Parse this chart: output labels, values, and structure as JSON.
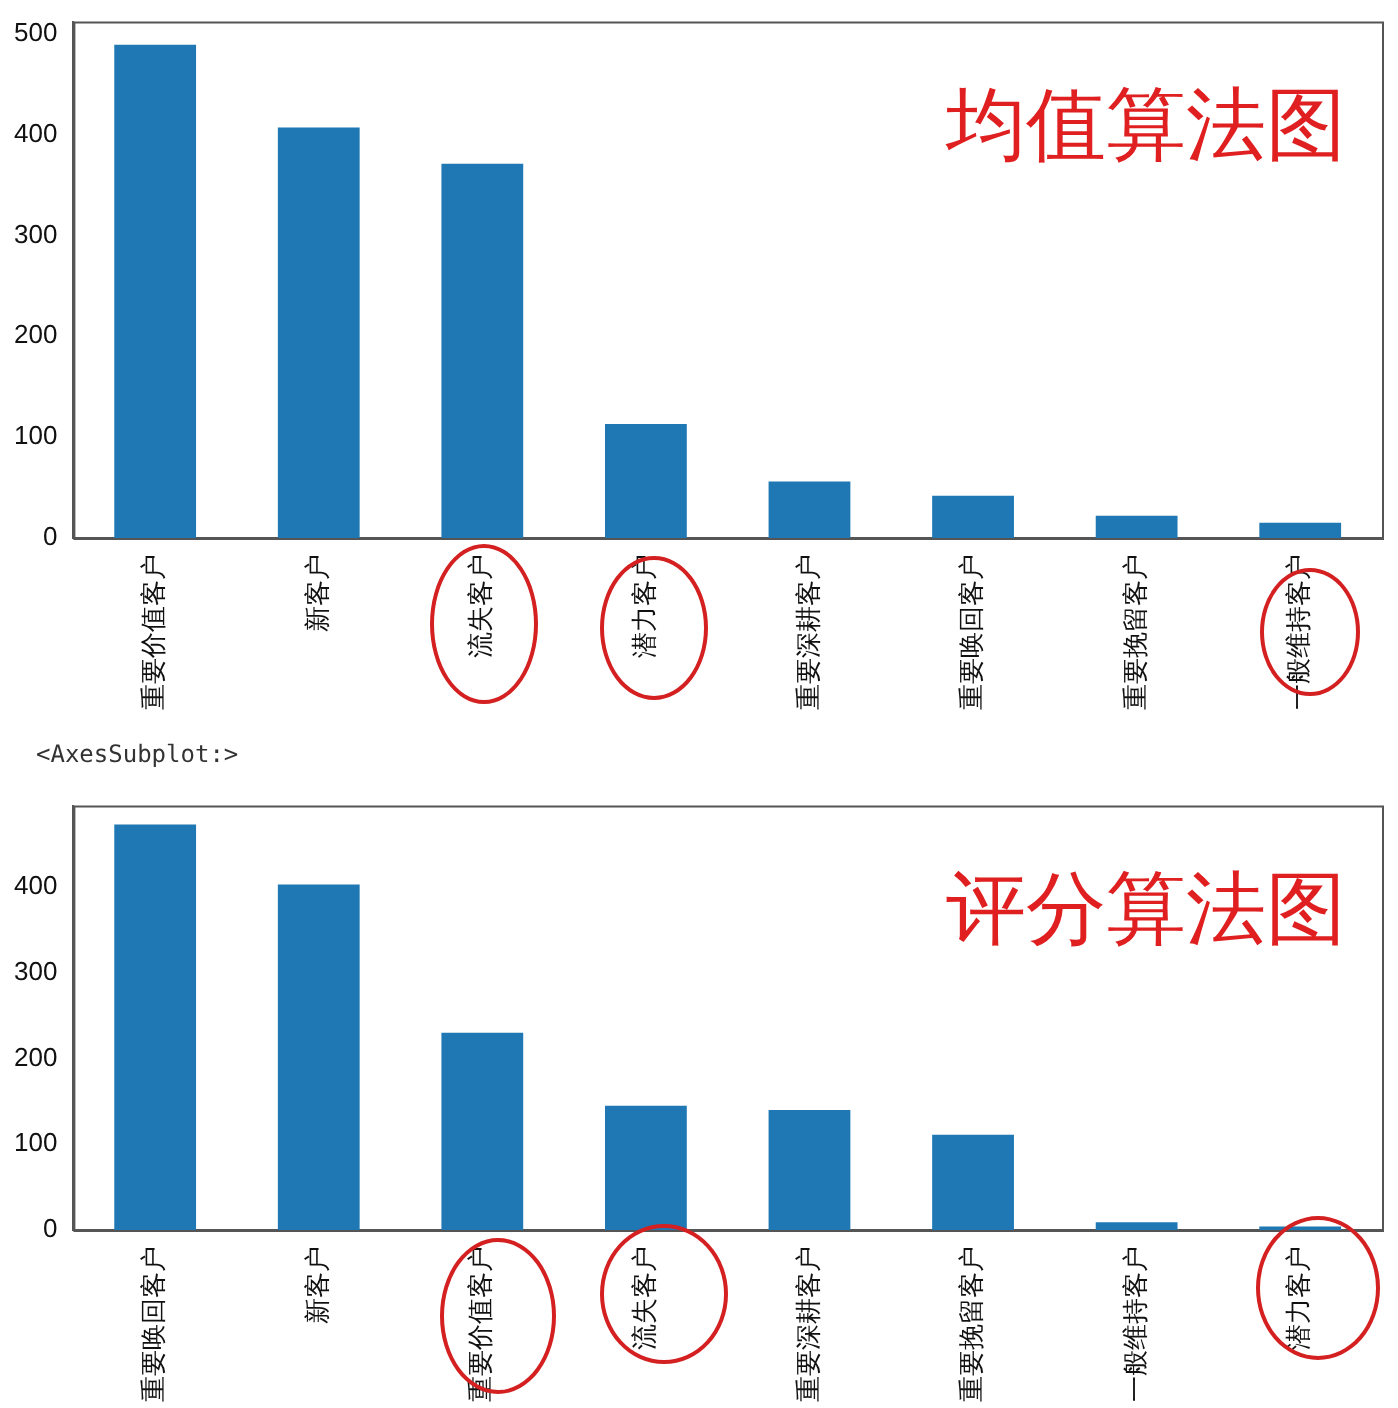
{
  "chart_data": [
    {
      "type": "bar",
      "title": "均值算法图",
      "categories": [
        "重要价值客户",
        "新客户",
        "流失客户",
        "潜力客户",
        "重要深耕客户",
        "重要唤回客户",
        "重要挽留客户",
        "一般维持客户"
      ],
      "values": [
        489,
        407,
        371,
        113,
        56,
        42,
        22,
        15
      ],
      "color": "#1f77b4",
      "ylim": [
        0,
        512
      ],
      "yticks": [
        0,
        100,
        200,
        300,
        400,
        500
      ],
      "grid": false,
      "legend": false
    },
    {
      "type": "bar",
      "title": "评分算法图",
      "categories": [
        "重要唤回客户",
        "新客户",
        "重要价值客户",
        "流失客户",
        "重要深耕客户",
        "重要挽留客户",
        "一般维持客户",
        "潜力客户"
      ],
      "values": [
        473,
        403,
        230,
        145,
        140,
        111,
        9,
        4
      ],
      "color": "#1f77b4",
      "ylim": [
        0,
        495
      ],
      "yticks": [
        0,
        100,
        200,
        300,
        400
      ],
      "grid": false,
      "legend": false,
      "annotations": [
        "<AxesSubplot:>"
      ]
    }
  ]
}
